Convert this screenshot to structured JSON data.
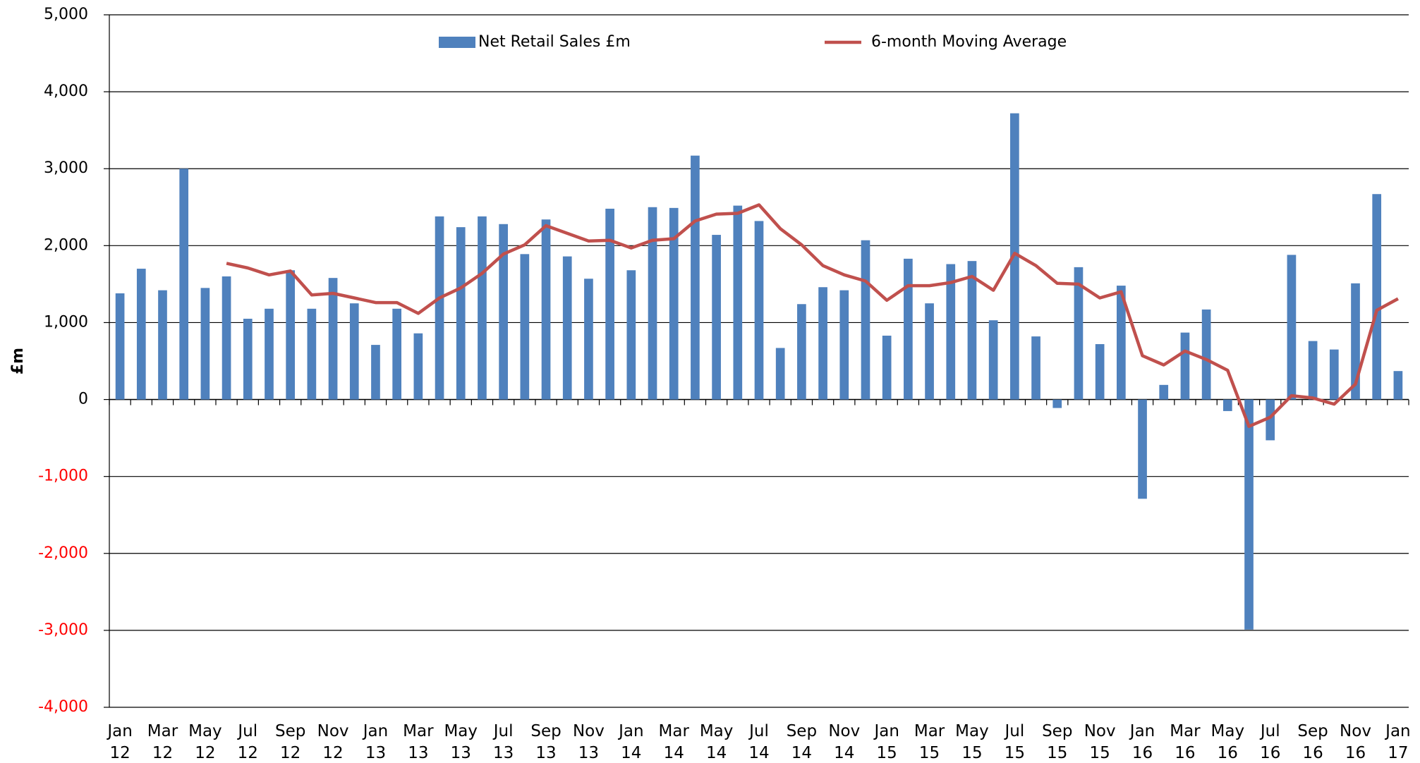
{
  "chart_data": {
    "type": "bar",
    "y_label": "£m",
    "categories": [
      "Jan 12",
      null,
      "Mar 12",
      null,
      "May 12",
      null,
      "Jul 12",
      null,
      "Sep 12",
      null,
      "Nov 12",
      null,
      "Jan 13",
      null,
      "Mar 13",
      null,
      "May 13",
      null,
      "Jul 13",
      null,
      "Sep 13",
      null,
      "Nov 13",
      null,
      "Jan 14",
      null,
      "Mar 14",
      null,
      "May 14",
      null,
      "Jul 14",
      null,
      "Sep 14",
      null,
      "Nov 14",
      null,
      "Jan 15",
      null,
      "Mar 15",
      null,
      "May 15",
      null,
      "Jul 15",
      null,
      "Sep 15",
      null,
      "Nov 15",
      null,
      "Jan 16",
      null,
      "Mar 16",
      null,
      "May 16",
      null,
      "Jul 16",
      null,
      "Sep 16",
      null,
      "Nov 16",
      null,
      "Jan 17"
    ],
    "series": [
      {
        "name": "Net Retail Sales £m",
        "type": "bar",
        "color": "#4f81bd",
        "values": [
          1380,
          1700,
          1420,
          3000,
          1450,
          1600,
          1050,
          1180,
          1680,
          1180,
          1580,
          1250,
          710,
          1180,
          860,
          2380,
          2240,
          2380,
          2280,
          1890,
          2340,
          1860,
          1570,
          2480,
          1680,
          2500,
          2490,
          3170,
          2140,
          2520,
          2320,
          670,
          1240,
          1460,
          1420,
          2070,
          830,
          1830,
          1250,
          1760,
          1800,
          1030,
          3720,
          820,
          -110,
          1720,
          720,
          1480,
          -1290,
          190,
          870,
          1170,
          -150,
          -2990,
          -530,
          1880,
          760,
          650,
          1510,
          2670,
          370
        ]
      },
      {
        "name": "6-month Moving Average",
        "type": "line",
        "color": "#c0504d",
        "values": [
          null,
          null,
          null,
          null,
          null,
          1770,
          1710,
          1620,
          1670,
          1360,
          1380,
          1320,
          1260,
          1260,
          1120,
          1320,
          1450,
          1640,
          1890,
          2010,
          2260,
          2160,
          2060,
          2070,
          1970,
          2070,
          2090,
          2320,
          2410,
          2420,
          2530,
          2220,
          2010,
          1740,
          1620,
          1540,
          1290,
          1480,
          1480,
          1520,
          1600,
          1420,
          1900,
          1740,
          1510,
          1500,
          1320,
          1400,
          570,
          450,
          630,
          520,
          380,
          -350,
          -230,
          50,
          20,
          -60,
          200,
          1160,
          1310
        ]
      }
    ],
    "ylim": [
      -4000,
      5000
    ],
    "yticks": [
      {
        "value": -4000,
        "label": "-4,000"
      },
      {
        "value": -3000,
        "label": "-3,000"
      },
      {
        "value": -2000,
        "label": "-2,000"
      },
      {
        "value": -1000,
        "label": "-1,000"
      },
      0,
      {
        "value": 1000,
        "label": "1,000"
      },
      {
        "value": 2000,
        "label": "2,000"
      },
      {
        "value": 3000,
        "label": "3,000"
      },
      {
        "value": 4000,
        "label": "4,000"
      },
      {
        "value": 5000,
        "label": "5,000"
      }
    ],
    "grid": true,
    "tick_label_color": "#000000",
    "negative_tick_color": "#ff0000",
    "legend": "top"
  }
}
